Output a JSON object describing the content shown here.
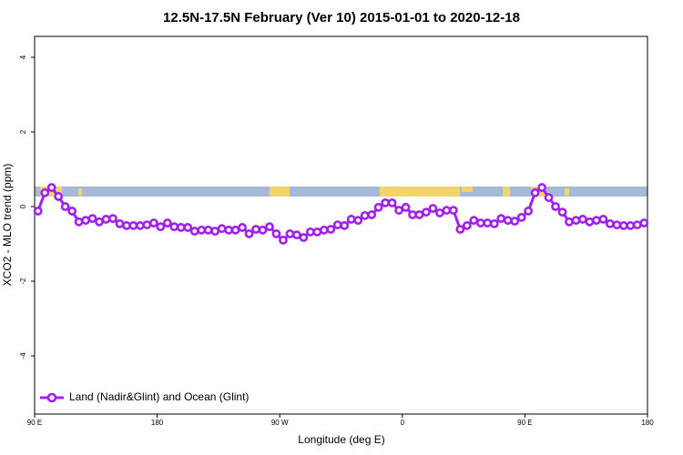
{
  "chart_data": {
    "type": "line",
    "title": "12.5N-17.5N February (Ver 10)   2015-01-01 to 2020-12-18",
    "x_label": "Longitude (deg E)",
    "y_label": "XCO2 - MLO trend (ppm)",
    "x": [
      92.5,
      97.5,
      102.5,
      107.5,
      112.5,
      117.5,
      122.5,
      127.5,
      132.5,
      137.5,
      142.5,
      147.5,
      152.5,
      157.5,
      162.5,
      167.5,
      172.5,
      177.5,
      182.5,
      187.5,
      192.5,
      197.5,
      202.5,
      207.5,
      212.5,
      217.5,
      222.5,
      227.5,
      232.5,
      237.5,
      242.5,
      247.5,
      252.5,
      257.5,
      262.5,
      267.5,
      272.5,
      277.5,
      282.5,
      287.5,
      292.5,
      297.5,
      302.5,
      307.5,
      312.5,
      317.5,
      322.5,
      327.5,
      332.5,
      337.5,
      342.5,
      347.5,
      352.5,
      357.5,
      362.5,
      367.5,
      372.5,
      377.5,
      382.5,
      387.5,
      392.5,
      397.5,
      402.5,
      407.5,
      412.5,
      417.5,
      422.5,
      427.5,
      432.5,
      437.5,
      442.5,
      447.5,
      452.5,
      457.5,
      462.5,
      467.5,
      472.5,
      477.5,
      482.5,
      487.5,
      492.5,
      497.5,
      502.5,
      507.5,
      512.5,
      517.5,
      522.5,
      527.5,
      532.5,
      537.5
    ],
    "series": [
      {
        "name": "Land (Nadir&Glint) and Ocean (Glint)",
        "color": "#a020f0",
        "values": [
          -0.12,
          0.37,
          0.51,
          0.27,
          0.0,
          -0.12,
          -0.41,
          -0.37,
          -0.32,
          -0.41,
          -0.34,
          -0.32,
          -0.46,
          -0.51,
          -0.51,
          -0.51,
          -0.49,
          -0.44,
          -0.54,
          -0.44,
          -0.54,
          -0.56,
          -0.56,
          -0.66,
          -0.63,
          -0.63,
          -0.66,
          -0.59,
          -0.63,
          -0.63,
          -0.56,
          -0.73,
          -0.61,
          -0.63,
          -0.54,
          -0.73,
          -0.9,
          -0.73,
          -0.76,
          -0.83,
          -0.68,
          -0.68,
          -0.63,
          -0.61,
          -0.49,
          -0.51,
          -0.34,
          -0.37,
          -0.24,
          -0.22,
          -0.02,
          0.1,
          0.1,
          -0.1,
          -0.02,
          -0.22,
          -0.22,
          -0.15,
          -0.05,
          -0.17,
          -0.1,
          -0.1,
          -0.61,
          -0.51,
          -0.37,
          -0.44,
          -0.44,
          -0.46,
          -0.32,
          -0.37,
          -0.39,
          -0.29,
          -0.12,
          0.37,
          0.51,
          0.24,
          0.0,
          -0.15,
          -0.41,
          -0.37,
          -0.34,
          -0.41,
          -0.37,
          -0.34,
          -0.46,
          -0.49,
          -0.51,
          -0.51,
          -0.49,
          -0.44
        ]
      }
    ],
    "xlim": [
      90,
      540
    ],
    "xticks": [
      {
        "value": 90,
        "label": "90 E"
      },
      180,
      {
        "value": 270,
        "label": "90 W"
      },
      {
        "value": 360,
        "label": "0"
      },
      {
        "value": 450,
        "label": "90 E"
      },
      {
        "value": 540,
        "label": "180"
      }
    ],
    "ylim": [
      -5.56,
      4.56
    ],
    "yticks": [
      -4,
      -2,
      0,
      2,
      4
    ],
    "legend": "bottom-left"
  }
}
